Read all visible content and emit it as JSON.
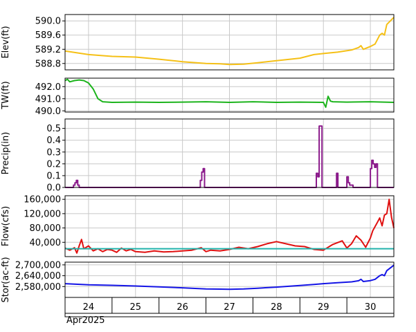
{
  "chart_data": [
    {
      "type": "line",
      "ylabel": "Elev(ft)",
      "ylim": [
        588.62,
        590.18
      ],
      "yticks": [
        588.8,
        589.2,
        589.6,
        590.0
      ],
      "ytick_labels": [
        "588.8",
        "589.2",
        "589.6",
        "590.0"
      ],
      "grid": true,
      "series": [
        {
          "color": "#f5c016",
          "x": [
            23.5,
            24.0,
            24.5,
            25.0,
            25.5,
            26.0,
            26.5,
            26.8,
            27.0,
            27.3,
            27.6,
            28.0,
            28.5,
            28.8,
            29.0,
            29.3,
            29.6,
            29.75,
            29.8,
            29.85,
            30.0,
            30.1,
            30.2,
            30.25,
            30.3,
            30.35,
            30.5
          ],
          "y": [
            589.15,
            589.05,
            589.0,
            588.98,
            588.92,
            588.85,
            588.8,
            588.79,
            588.77,
            588.78,
            588.82,
            588.88,
            588.95,
            589.05,
            589.08,
            589.12,
            589.18,
            589.25,
            589.3,
            589.2,
            589.28,
            589.35,
            589.6,
            589.65,
            589.6,
            589.9,
            590.1
          ]
        }
      ]
    },
    {
      "type": "line",
      "ylabel": "TW(ft)",
      "ylim": [
        489.9,
        492.7
      ],
      "yticks": [
        490.0,
        491.0,
        492.0
      ],
      "ytick_labels": [
        "490.0",
        "491.0",
        "492.0"
      ],
      "grid": true,
      "series": [
        {
          "color": "#1cb41c",
          "x": [
            23.5,
            23.55,
            23.6,
            23.7,
            23.8,
            23.9,
            24.0,
            24.1,
            24.2,
            24.3,
            24.5,
            25.0,
            25.5,
            26.0,
            26.5,
            27.0,
            27.5,
            28.0,
            28.5,
            29.0,
            29.05,
            29.1,
            29.15,
            29.2,
            29.5,
            30.0,
            30.5
          ],
          "y": [
            492.5,
            492.6,
            492.4,
            492.5,
            492.55,
            492.5,
            492.3,
            491.8,
            491.0,
            490.75,
            490.7,
            490.72,
            490.7,
            490.72,
            490.75,
            490.7,
            490.75,
            490.7,
            490.72,
            490.7,
            490.3,
            491.2,
            490.8,
            490.75,
            490.72,
            490.75,
            490.7
          ]
        }
      ]
    },
    {
      "type": "line",
      "ylabel": "Precip(in)",
      "ylim": [
        0,
        0.58
      ],
      "yticks": [
        0.0,
        0.1,
        0.2,
        0.3,
        0.4,
        0.5
      ],
      "ytick_labels": [
        "0.0",
        "0.1",
        "0.2",
        "0.3",
        "0.4",
        "0.5"
      ],
      "grid": true,
      "series": [
        {
          "color": "#8b1a8b",
          "x": [
            23.5,
            23.68,
            23.68,
            23.71,
            23.71,
            23.74,
            23.74,
            23.77,
            23.77,
            23.8,
            23.8,
            26.38,
            26.38,
            26.41,
            26.41,
            26.44,
            26.44,
            26.47,
            26.47,
            28.85,
            28.85,
            28.88,
            28.88,
            28.91,
            28.91,
            28.94,
            28.94,
            28.97,
            28.97,
            29.0,
            29.0,
            29.28,
            29.28,
            29.31,
            29.31,
            29.5,
            29.5,
            29.53,
            29.53,
            29.56,
            29.56,
            29.6,
            29.6,
            29.63,
            29.63,
            30.0,
            30.0,
            30.03,
            30.03,
            30.06,
            30.06,
            30.09,
            30.09,
            30.12,
            30.12,
            30.15,
            30.15,
            30.5
          ],
          "y": [
            0,
            0,
            0.02,
            0.02,
            0.04,
            0.04,
            0.06,
            0.06,
            0.02,
            0.02,
            0,
            0,
            0.06,
            0.06,
            0.13,
            0.13,
            0.16,
            0.16,
            0,
            0,
            0.12,
            0.12,
            0.09,
            0.09,
            0.52,
            0.52,
            0.52,
            0.52,
            0,
            0,
            0,
            0,
            0.12,
            0.12,
            0,
            0,
            0.09,
            0.09,
            0.04,
            0.04,
            0.02,
            0.02,
            0.02,
            0.02,
            0,
            0,
            0.16,
            0.16,
            0.23,
            0.23,
            0.2,
            0.2,
            0.17,
            0.17,
            0.2,
            0.2,
            0,
            0
          ]
        }
      ]
    },
    {
      "type": "line",
      "ylabel": "Flow(cfs)",
      "ylim": [
        0,
        170000
      ],
      "yticks": [
        40000,
        80000,
        120000,
        160000
      ],
      "ytick_labels": [
        "40,000",
        "80,000",
        "120,000",
        "160,000"
      ],
      "grid": true,
      "series": [
        {
          "color": "#e01010",
          "x": [
            23.5,
            23.6,
            23.7,
            23.75,
            23.8,
            23.85,
            23.9,
            24.0,
            24.1,
            24.2,
            24.3,
            24.4,
            24.5,
            24.6,
            24.7,
            24.8,
            24.9,
            25.0,
            25.2,
            25.4,
            25.6,
            25.8,
            26.0,
            26.2,
            26.4,
            26.5,
            26.6,
            26.8,
            27.0,
            27.2,
            27.4,
            27.6,
            27.8,
            28.0,
            28.2,
            28.4,
            28.6,
            28.8,
            29.0,
            29.2,
            29.4,
            29.5,
            29.6,
            29.7,
            29.8,
            29.9,
            30.0,
            30.05,
            30.1,
            30.15,
            30.2,
            30.25,
            30.3,
            30.35,
            30.4,
            30.45,
            30.5
          ],
          "y": [
            24000,
            18000,
            25000,
            10000,
            30000,
            48000,
            22000,
            30000,
            16000,
            22000,
            14000,
            20000,
            18000,
            12000,
            24000,
            16000,
            20000,
            14000,
            12000,
            16000,
            13000,
            14000,
            16000,
            18000,
            25000,
            14000,
            18000,
            16000,
            20000,
            26000,
            22000,
            28000,
            36000,
            42000,
            36000,
            30000,
            28000,
            20000,
            18000,
            34000,
            44000,
            24000,
            36000,
            58000,
            46000,
            26000,
            52000,
            72000,
            84000,
            96000,
            108000,
            86000,
            116000,
            120000,
            160000,
            110000,
            80000
          ]
        },
        {
          "color": "#20b2aa",
          "x": [
            23.5,
            30.5
          ],
          "y": [
            22000,
            22000
          ]
        }
      ]
    },
    {
      "type": "line",
      "ylabel": "Stor(ac-ft)",
      "ylim": [
        2520000,
        2715000
      ],
      "yticks": [
        2580000,
        2640000,
        2700000
      ],
      "ytick_labels": [
        "2,580,000",
        "2,640,000",
        "2,700,000"
      ],
      "grid": true,
      "series": [
        {
          "color": "#1414e6",
          "x": [
            23.5,
            24.0,
            24.5,
            25.0,
            25.5,
            26.0,
            26.5,
            26.8,
            27.0,
            27.3,
            27.6,
            28.0,
            28.5,
            28.8,
            29.0,
            29.3,
            29.6,
            29.75,
            29.8,
            29.85,
            30.0,
            30.1,
            30.2,
            30.25,
            30.3,
            30.35,
            30.5
          ],
          "y": [
            2596000,
            2590000,
            2587000,
            2583000,
            2578000,
            2573000,
            2567000,
            2566000,
            2565000,
            2567000,
            2571000,
            2577000,
            2586000,
            2592000,
            2596000,
            2601000,
            2606000,
            2612000,
            2620000,
            2608000,
            2613000,
            2620000,
            2640000,
            2646000,
            2640000,
            2668000,
            2698000
          ]
        }
      ]
    }
  ],
  "x_axis": {
    "ticks": [
      24,
      25,
      26,
      27,
      28,
      29,
      30
    ],
    "tick_labels": [
      "24",
      "25",
      "26",
      "27",
      "28",
      "29",
      "30"
    ],
    "month_label": "Apr2025",
    "range": [
      23.5,
      30.5
    ]
  }
}
